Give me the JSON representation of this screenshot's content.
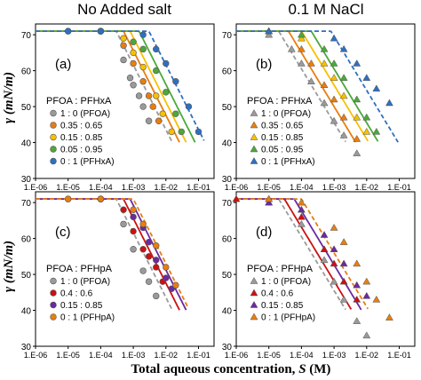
{
  "figure": {
    "col_titles": [
      "No Added salt",
      "0.1 M NaCl"
    ],
    "y_axis_label": "γ (mN/m)",
    "x_axis_label_main": "Total aqueous concentration, ",
    "x_axis_label_var": "S",
    "x_axis_label_unit": " (M)",
    "x_ticks": [
      "1.E-06",
      "1.E-05",
      "1.E-04",
      "1.E-03",
      "1.E-02",
      "1.E-01"
    ],
    "y_ticks": [
      "30",
      "40",
      "50",
      "60",
      "70"
    ]
  },
  "chart_data": [
    {
      "type": "scatter",
      "panel_label": "(a)",
      "legend_title": "PFOA : PFHxA",
      "marker": "circle",
      "xscale": "log",
      "xlim": [
        1e-06,
        0.3
      ],
      "ylim": [
        30,
        73
      ],
      "series": [
        {
          "name": "1 : 0 (PFOA)",
          "color": "#9a9a9a",
          "line": "dashed",
          "knee": 0.0003,
          "slope": 18,
          "points": [
            [
              1e-05,
              71
            ],
            [
              0.0001,
              71
            ],
            [
              0.0005,
              63
            ],
            [
              0.0008,
              58
            ],
            [
              0.001,
              56
            ],
            [
              0.0015,
              53
            ],
            [
              0.002,
              50
            ],
            [
              0.003,
              46
            ]
          ]
        },
        {
          "name": "0.35 : 0.65",
          "color": "#e87e10",
          "line": "solid",
          "knee": 0.0005,
          "slope": 18,
          "points": [
            [
              0.0001,
              71
            ],
            [
              0.0005,
              67
            ],
            [
              0.001,
              62
            ],
            [
              0.002,
              57
            ],
            [
              0.003,
              53
            ],
            [
              0.004,
              50
            ],
            [
              0.006,
              46
            ]
          ]
        },
        {
          "name": "0.15 : 0.85",
          "color": "#f7c000",
          "line": "solid",
          "knee": 0.0008,
          "slope": 18,
          "points": [
            [
              0.0001,
              71
            ],
            [
              0.0005,
              69
            ],
            [
              0.001,
              65
            ],
            [
              0.002,
              61
            ],
            [
              0.005,
              53
            ],
            [
              0.008,
              48
            ],
            [
              0.015,
              43
            ]
          ]
        },
        {
          "name": "0.05 : 0.95",
          "color": "#4ca83a",
          "line": "solid",
          "knee": 0.0015,
          "slope": 18,
          "points": [
            [
              0.0001,
              71
            ],
            [
              0.001,
              68
            ],
            [
              0.002,
              66
            ],
            [
              0.005,
              60
            ],
            [
              0.01,
              54
            ],
            [
              0.02,
              48
            ],
            [
              0.03,
              43
            ]
          ]
        },
        {
          "name": "0 : 1 (PFHxA)",
          "color": "#2f6fc0",
          "line": "dashed",
          "knee": 0.003,
          "slope": 18,
          "points": [
            [
              1e-05,
              71
            ],
            [
              0.0001,
              71
            ],
            [
              0.002,
              70
            ],
            [
              0.005,
              66
            ],
            [
              0.01,
              62
            ],
            [
              0.02,
              57
            ],
            [
              0.05,
              50
            ],
            [
              0.1,
              43
            ]
          ]
        }
      ]
    },
    {
      "type": "scatter",
      "panel_label": "(b)",
      "legend_title": "PFOA : PFHxA",
      "marker": "triangle",
      "xscale": "log",
      "xlim": [
        1e-06,
        0.3
      ],
      "ylim": [
        30,
        73
      ],
      "series": [
        {
          "name": "1 : 0 (PFOA)",
          "color": "#9a9a9a",
          "line": "dashed",
          "knee": 2e-05,
          "slope": 15,
          "points": [
            [
              1e-05,
              70
            ],
            [
              5e-05,
              66
            ],
            [
              0.0001,
              62
            ],
            [
              0.0002,
              57
            ],
            [
              0.0005,
              51
            ],
            [
              0.001,
              46
            ],
            [
              0.002,
              42
            ],
            [
              0.005,
              37
            ]
          ]
        },
        {
          "name": "0.35 : 0.65",
          "color": "#e87e10",
          "line": "solid",
          "knee": 4e-05,
          "slope": 15,
          "points": [
            [
              1e-05,
              71
            ],
            [
              0.0001,
              66
            ],
            [
              0.0002,
              62
            ],
            [
              0.0005,
              56
            ],
            [
              0.001,
              52
            ],
            [
              0.002,
              47
            ],
            [
              0.005,
              41
            ]
          ]
        },
        {
          "name": "0.15 : 0.85",
          "color": "#f7c000",
          "line": "solid",
          "knee": 0.0001,
          "slope": 15,
          "points": [
            [
              1e-05,
              71
            ],
            [
              0.0001,
              69
            ],
            [
              0.0005,
              62
            ],
            [
              0.001,
              58
            ],
            [
              0.002,
              53
            ],
            [
              0.005,
              47
            ],
            [
              0.01,
              43
            ]
          ]
        },
        {
          "name": "0.05 : 0.95",
          "color": "#4ca83a",
          "line": "solid",
          "knee": 0.0002,
          "slope": 15,
          "points": [
            [
              1e-05,
              71
            ],
            [
              0.0001,
              70
            ],
            [
              0.0005,
              66
            ],
            [
              0.001,
              62
            ],
            [
              0.002,
              58
            ],
            [
              0.005,
              52
            ],
            [
              0.01,
              47
            ],
            [
              0.02,
              43
            ]
          ]
        },
        {
          "name": "0 : 1 (PFHxA)",
          "color": "#2f6fc0",
          "line": "dashed",
          "knee": 0.0008,
          "slope": 15,
          "points": [
            [
              1e-05,
              71
            ],
            [
              0.001,
              69
            ],
            [
              0.002,
              66
            ],
            [
              0.005,
              62
            ],
            [
              0.01,
              58
            ],
            [
              0.02,
              55
            ],
            [
              0.05,
              51
            ]
          ]
        }
      ]
    },
    {
      "type": "scatter",
      "panel_label": "(c)",
      "legend_title": "PFOA : PFHpA",
      "marker": "circle",
      "xscale": "log",
      "xlim": [
        1e-06,
        0.3
      ],
      "ylim": [
        30,
        73
      ],
      "series": [
        {
          "name": "1 : 0 (PFOA)",
          "color": "#9a9a9a",
          "line": "dashed",
          "knee": 0.0003,
          "slope": 18,
          "points": [
            [
              1e-05,
              71
            ],
            [
              0.0001,
              71
            ],
            [
              0.0005,
              64
            ],
            [
              0.001,
              57
            ],
            [
              0.002,
              51
            ],
            [
              0.003,
              48
            ],
            [
              0.005,
              44
            ]
          ]
        },
        {
          "name": "0.4 : 0.6",
          "color": "#cc1010",
          "line": "solid",
          "knee": 0.0005,
          "slope": 18,
          "points": [
            [
              0.0001,
              71
            ],
            [
              0.0005,
              68
            ],
            [
              0.001,
              62
            ],
            [
              0.002,
              57
            ],
            [
              0.003,
              55
            ],
            [
              0.005,
              52
            ],
            [
              0.008,
              48
            ]
          ]
        },
        {
          "name": "0.15 : 0.85",
          "color": "#6a2aa0",
          "line": "solid",
          "knee": 0.0008,
          "slope": 18,
          "points": [
            [
              0.0001,
              71
            ],
            [
              0.001,
              66
            ],
            [
              0.002,
              63
            ],
            [
              0.003,
              59
            ],
            [
              0.005,
              54
            ],
            [
              0.01,
              49
            ],
            [
              0.015,
              46
            ]
          ]
        },
        {
          "name": "0 : 1 (PFHpA)",
          "color": "#e87e10",
          "line": "dashed",
          "knee": 0.001,
          "slope": 18,
          "points": [
            [
              1e-05,
              71
            ],
            [
              0.0001,
              71
            ],
            [
              0.001,
              68
            ],
            [
              0.002,
              64
            ],
            [
              0.005,
              58
            ],
            [
              0.01,
              52
            ],
            [
              0.02,
              47
            ]
          ]
        }
      ]
    },
    {
      "type": "scatter",
      "panel_label": "(d)",
      "legend_title": "PFOA : PFHpA",
      "marker": "triangle",
      "xscale": "log",
      "xlim": [
        1e-06,
        0.3
      ],
      "ylim": [
        30,
        73
      ],
      "series": [
        {
          "name": "1 : 0 (PFOA)",
          "color": "#9a9a9a",
          "line": "dashed",
          "knee": 2e-05,
          "slope": 15,
          "points": [
            [
              1e-05,
              71
            ],
            [
              0.0001,
              64
            ],
            [
              0.0005,
              54
            ],
            [
              0.001,
              48
            ],
            [
              0.002,
              43
            ],
            [
              0.005,
              37
            ],
            [
              0.01,
              33
            ]
          ]
        },
        {
          "name": "0.4 : 0.6",
          "color": "#cc1010",
          "line": "solid",
          "knee": 3e-05,
          "slope": 15,
          "points": [
            [
              1e-06,
              71
            ],
            [
              1e-05,
              70
            ],
            [
              0.0001,
              66
            ],
            [
              0.0005,
              57
            ],
            [
              0.001,
              53
            ],
            [
              0.002,
              48
            ],
            [
              0.005,
              43
            ]
          ]
        },
        {
          "name": "0.15 : 0.85",
          "color": "#6a2aa0",
          "line": "solid",
          "knee": 6e-05,
          "slope": 15,
          "points": [
            [
              1e-05,
              70
            ],
            [
              0.0001,
              68
            ],
            [
              0.0005,
              61
            ],
            [
              0.001,
              57
            ],
            [
              0.002,
              53
            ],
            [
              0.005,
              47
            ],
            [
              0.01,
              44
            ]
          ]
        },
        {
          "name": "0 : 1 (PFHpA)",
          "color": "#e87e10",
          "line": "dashed",
          "knee": 0.0001,
          "slope": 15,
          "points": [
            [
              1e-05,
              71
            ],
            [
              0.0001,
              70
            ],
            [
              0.001,
              63
            ],
            [
              0.002,
              59
            ],
            [
              0.005,
              53
            ],
            [
              0.01,
              48
            ],
            [
              0.02,
              43
            ],
            [
              0.05,
              38
            ]
          ]
        }
      ]
    }
  ]
}
